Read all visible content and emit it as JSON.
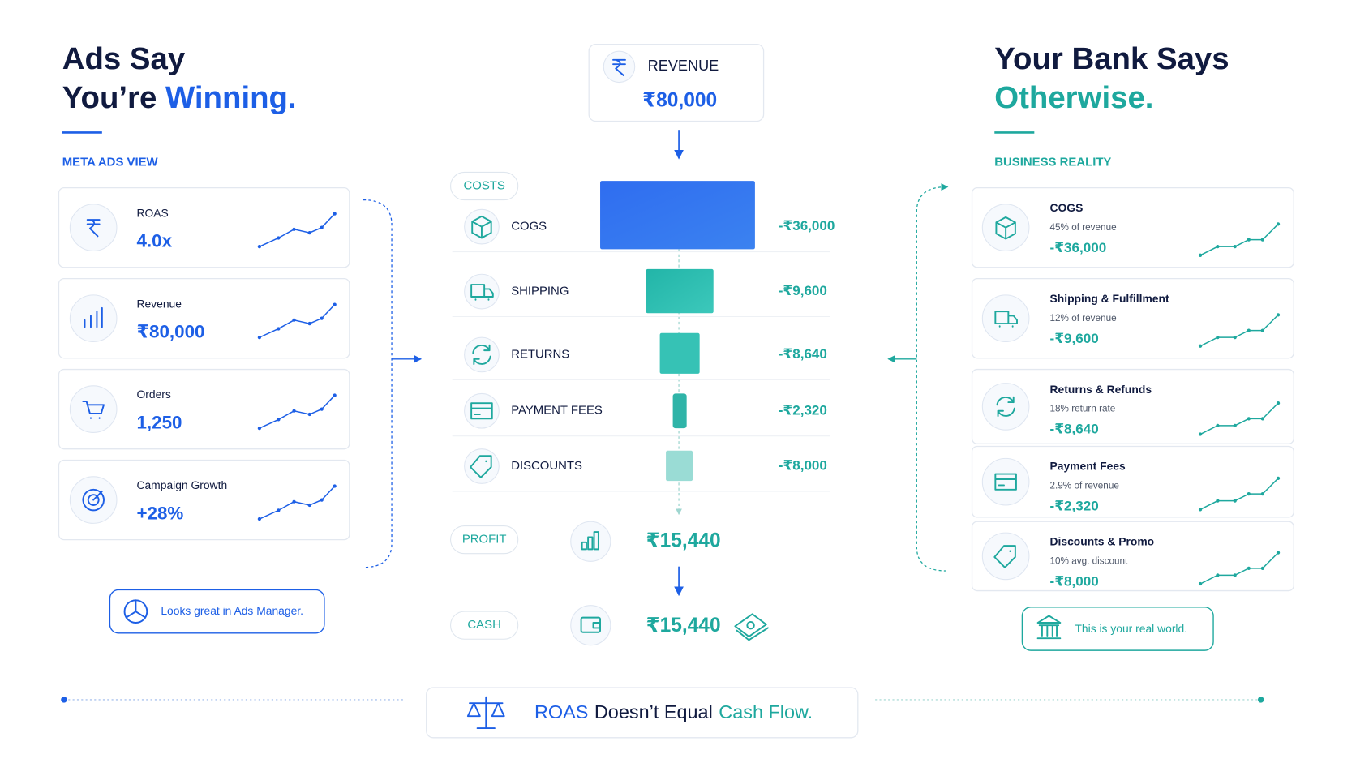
{
  "left": {
    "title": [
      "Ads Say",
      "You’re",
      "Winning."
    ],
    "section": "META ADS VIEW",
    "cards": [
      {
        "label": "ROAS",
        "value": "4.0x"
      },
      {
        "label": "Revenue",
        "value": "₹80,000"
      },
      {
        "label": "Orders",
        "value": "1,250"
      },
      {
        "label": "Campaign Growth",
        "value": "+28%"
      }
    ],
    "note": "Looks great in Ads Manager."
  },
  "center": {
    "revenue": {
      "label": "REVENUE",
      "value": "₹80,000"
    },
    "costs_label": "COSTS",
    "costs": [
      {
        "label": "COGS",
        "amount": "-₹36,000"
      },
      {
        "label": "SHIPPING",
        "amount": "-₹9,600"
      },
      {
        "label": "RETURNS",
        "amount": "-₹8,640"
      },
      {
        "label": "PAYMENT FEES",
        "amount": "-₹2,320"
      },
      {
        "label": "DISCOUNTS",
        "amount": "-₹8,000"
      }
    ],
    "profit": {
      "label": "PROFIT",
      "value": "₹15,440"
    },
    "cash": {
      "label": "CASH",
      "value": "₹15,440"
    }
  },
  "right": {
    "title": [
      "Your Bank Says",
      "Otherwise."
    ],
    "section": "BUSINESS REALITY",
    "cards": [
      {
        "label": "COGS",
        "sub": "45% of revenue",
        "value": "-₹36,000"
      },
      {
        "label": "Shipping & Fulfillment",
        "sub": "12% of revenue",
        "value": "-₹9,600"
      },
      {
        "label": "Returns & Refunds",
        "sub": "18% return rate",
        "value": "-₹8,640"
      },
      {
        "label": "Payment Fees",
        "sub": "2.9% of revenue",
        "value": "-₹2,320"
      },
      {
        "label": "Discounts & Promo",
        "sub": "10% avg. discount",
        "value": "-₹8,000"
      }
    ],
    "note": "This is your real world."
  },
  "footer": [
    "ROAS",
    "Doesn’t Equal",
    "Cash Flow."
  ]
}
